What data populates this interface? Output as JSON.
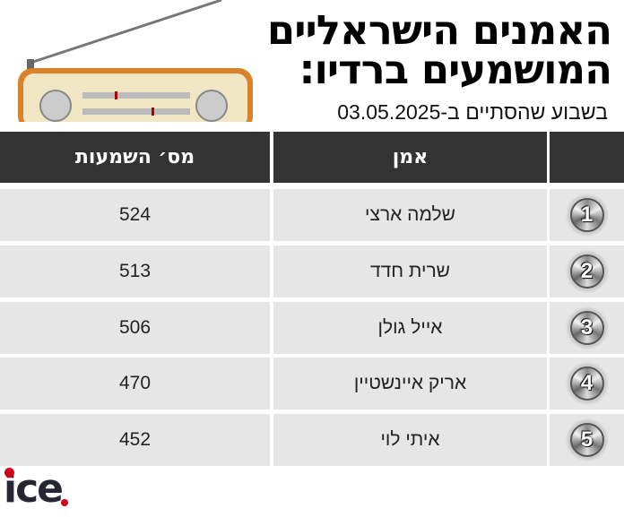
{
  "header": {
    "title_line1": "האמנים הישראליים",
    "title_line2": "המושמעים ברדיו:",
    "subtitle": "בשבוע שהסתיים ב-03.05.2025"
  },
  "table": {
    "columns": [
      "",
      "אמן",
      "מס׳ השמעות"
    ],
    "rows": [
      {
        "rank": "1",
        "artist": "שלמה ארצי",
        "plays": "524"
      },
      {
        "rank": "2",
        "artist": "שרית חדד",
        "plays": "513"
      },
      {
        "rank": "3",
        "artist": "אייל גולן",
        "plays": "506"
      },
      {
        "rank": "4",
        "artist": "אריק איינשטיין",
        "plays": "470"
      },
      {
        "rank": "5",
        "artist": "איתי לוי",
        "plays": "452"
      }
    ]
  },
  "logo": {
    "text": "ice"
  },
  "colors": {
    "header_bg": "#333333",
    "row_bg": "#e6e6e6",
    "logo_red": "#d0021b",
    "logo_dark": "#262633"
  },
  "icons": {
    "illustration": "retro-radio-icon",
    "rank": "chrome-medal-icon"
  }
}
